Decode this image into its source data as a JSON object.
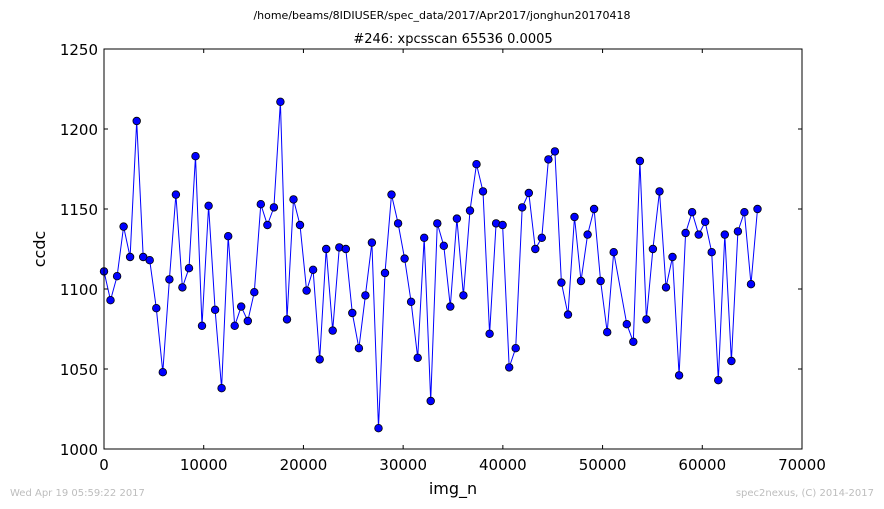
{
  "figure": {
    "suptitle": "/home/beams/8IDIUSER/spec_data/2017/Apr2017/jonghun20170418",
    "footer_left": "Wed Apr 19 05:59:22 2017",
    "footer_right": "spec2nexus, (C) 2014-2017"
  },
  "chart_data": {
    "type": "line",
    "title": "#246: xpcsscan 65536 0.0005",
    "xlabel": "img_n",
    "ylabel": "ccdc",
    "xlim": [
      0,
      70000
    ],
    "ylim": [
      1000,
      1250
    ],
    "xticks": [
      "0",
      "10000",
      "20000",
      "30000",
      "40000",
      "50000",
      "60000",
      "70000"
    ],
    "yticks": [
      "1000",
      "1050",
      "1100",
      "1150",
      "1200",
      "1250"
    ],
    "grid": false,
    "marker": "circle",
    "colors": {
      "line": "#0000ff",
      "marker_face": "#0000ff",
      "marker_edge": "#000000"
    },
    "series": [
      {
        "x": [
          0,
          655,
          1311,
          1966,
          2621,
          3277,
          3932,
          4588,
          5243,
          5898,
          6554,
          7209,
          7864,
          8520,
          9175,
          9830,
          10486,
          11141,
          11796,
          12452,
          13107,
          13762,
          14418,
          15073,
          15729,
          16384,
          17039,
          17695,
          18350,
          19005,
          19661,
          20316,
          20972,
          21627,
          22282,
          22938,
          23593,
          24248,
          24904,
          25559,
          26214,
          26870,
          27525,
          28180,
          28836,
          29491,
          30147,
          30802,
          31457,
          32113,
          32768,
          33423,
          34079,
          34734,
          35389,
          36045,
          36700,
          37356,
          38011,
          38666,
          39322,
          39977,
          40632,
          41288,
          41943,
          42598,
          43254,
          43909,
          44564,
          45220,
          45875,
          46531,
          47186,
          47841,
          48497,
          49152,
          49807,
          50463,
          51118,
          52429,
          53084,
          53740,
          54395,
          55050,
          55706,
          56361,
          57016,
          57672,
          58327,
          58982,
          59638,
          60293,
          60948,
          61604,
          62259,
          62915,
          63570,
          64225,
          64881,
          65536
        ],
        "y": [
          1111,
          1093,
          1108,
          1139,
          1120,
          1205,
          1120,
          1118,
          1088,
          1048,
          1106,
          1159,
          1101,
          1113,
          1183,
          1077,
          1152,
          1087,
          1038,
          1133,
          1077,
          1089,
          1080,
          1098,
          1153,
          1140,
          1151,
          1217,
          1081,
          1156,
          1140,
          1099,
          1112,
          1056,
          1125,
          1074,
          1126,
          1125,
          1085,
          1063,
          1096,
          1129,
          1013,
          1110,
          1159,
          1141,
          1119,
          1092,
          1057,
          1132,
          1030,
          1141,
          1127,
          1089,
          1144,
          1096,
          1149,
          1178,
          1161,
          1072,
          1141,
          1140,
          1051,
          1063,
          1151,
          1160,
          1125,
          1132,
          1181,
          1186,
          1104,
          1084,
          1145,
          1105,
          1134,
          1150,
          1105,
          1073,
          1123,
          1078,
          1067,
          1180,
          1081,
          1125,
          1161,
          1101,
          1120,
          1046,
          1135,
          1148,
          1134,
          1142,
          1123,
          1043,
          1134,
          1055,
          1136,
          1148,
          1103,
          1150
        ]
      }
    ]
  }
}
